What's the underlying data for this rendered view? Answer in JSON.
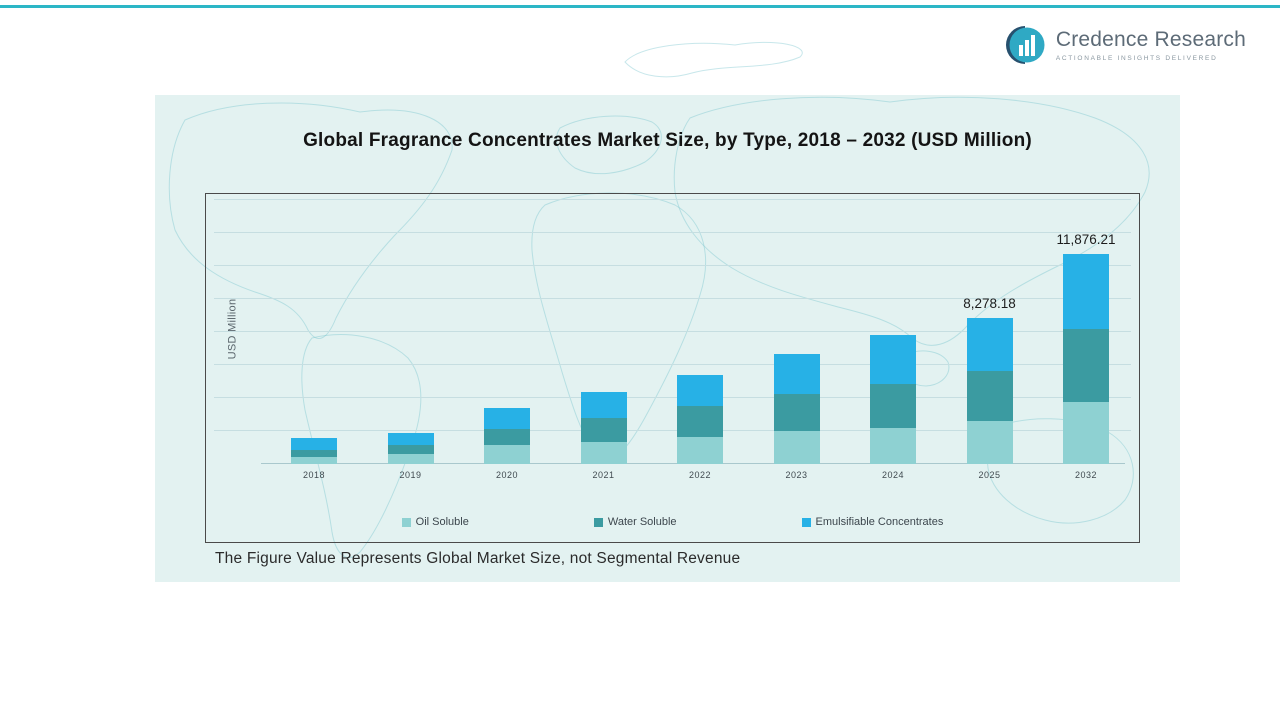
{
  "logo": {
    "brand": "Credence Research",
    "tagline": "Actionable Insights Delivered"
  },
  "chart_data": {
    "type": "bar",
    "stacked": true,
    "title": "Global Fragrance Concentrates Market Size, by Type, 2018 – 2032 (USD Million)",
    "ylabel": "USD Million",
    "xlabel": "",
    "categories": [
      "2018",
      "2019",
      "2020",
      "2021",
      "2022",
      "2023",
      "2024",
      "2025",
      "2032"
    ],
    "series": [
      {
        "name": "Oil Soluble",
        "color": "#8ed1d2",
        "values": [
          400,
          578,
          1068,
          1246,
          1558,
          1869,
          2047,
          2448.18,
          3506
        ]
      },
      {
        "name": "Water Soluble",
        "color": "#3b9ba1",
        "values": [
          400,
          490,
          934,
          1380,
          1736,
          2092,
          2492,
          2804,
          4128
        ]
      },
      {
        "name": "Emulsifiable Concentrates",
        "color": "#27b1e6",
        "values": [
          670,
          712,
          1157,
          1424,
          1736,
          2270,
          2759,
          3026,
          4242.21
        ]
      }
    ],
    "value_labels": [
      "",
      "",
      "",
      "",
      "",
      "",
      "",
      "8,278.18",
      "11,876.21"
    ],
    "ylim": [
      0,
      12500
    ],
    "grid": true,
    "legend_position": "bottom"
  },
  "footnote": "The Figure Value Represents Global Market Size, not Segmental Revenue",
  "colors": {
    "accent_teal": "#2cb6c6",
    "panel_background": "#e3f2f1",
    "oil_soluble": "#8ed1d2",
    "water_soluble": "#3b9ba1",
    "emulsifiable_concentrates": "#27b1e6"
  }
}
